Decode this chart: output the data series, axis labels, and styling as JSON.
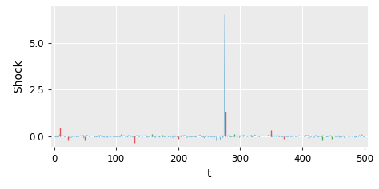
{
  "title": "",
  "xlabel": "t",
  "ylabel": "Shock",
  "xlim": [
    -5,
    505
  ],
  "ylim": [
    -0.55,
    7.0
  ],
  "yticks": [
    0.0,
    2.5,
    5.0
  ],
  "xticks": [
    0,
    100,
    200,
    300,
    400,
    500
  ],
  "bg_color": "#EBEBEB",
  "fig_bg_color": "#FFFFFF",
  "grid_color": "#FFFFFF",
  "blue_color": "#6BAED6",
  "red_color": "#E05555",
  "green_color": "#4CAF50",
  "n_points": 501,
  "blue_spike_t": 275,
  "blue_spike_val": 6.5,
  "blue_spikes_small": [
    {
      "t": 262,
      "val": -0.25
    },
    {
      "t": 268,
      "val": -0.18
    }
  ],
  "red_spikes": [
    {
      "t": 10,
      "val": 0.45
    },
    {
      "t": 22,
      "val": -0.22
    },
    {
      "t": 50,
      "val": -0.22
    },
    {
      "t": 130,
      "val": -0.35
    },
    {
      "t": 200,
      "val": -0.12
    },
    {
      "t": 276,
      "val": 1.3
    },
    {
      "t": 350,
      "val": 0.35
    },
    {
      "t": 370,
      "val": -0.12
    },
    {
      "t": 410,
      "val": -0.1
    }
  ],
  "green_spikes": [
    {
      "t": 158,
      "val": 0.12
    },
    {
      "t": 175,
      "val": 0.1
    },
    {
      "t": 193,
      "val": 0.1
    },
    {
      "t": 290,
      "val": 0.12
    },
    {
      "t": 305,
      "val": 0.1
    },
    {
      "t": 318,
      "val": 0.08
    },
    {
      "t": 432,
      "val": -0.2
    },
    {
      "t": 448,
      "val": -0.12
    }
  ],
  "noise_seed": 12,
  "noise_std": 0.03
}
